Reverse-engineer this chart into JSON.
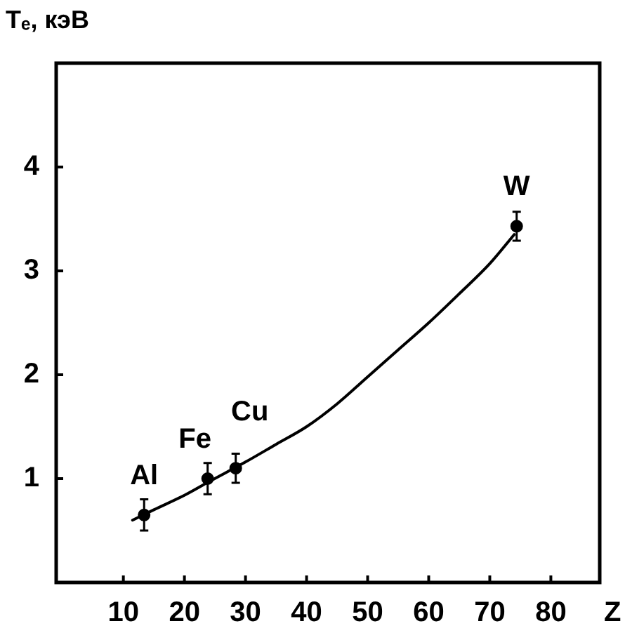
{
  "chart_data": {
    "type": "scatter",
    "xlabel": "Z",
    "ylabel": "Tₑ, кэВ",
    "xlim": [
      -1,
      88
    ],
    "xticks": [
      10,
      20,
      30,
      40,
      50,
      60,
      70,
      80
    ],
    "ylim": [
      0,
      5
    ],
    "yticks": [
      1,
      2,
      3,
      4
    ],
    "grid": false,
    "legend": false,
    "marker": "circle",
    "series": [
      {
        "color": "#000000",
        "x": [
          13.4,
          23.8,
          28.4,
          74.4
        ],
        "values": [
          0.65,
          1.0,
          1.1,
          3.43
        ],
        "errors": [
          0.15,
          0.15,
          0.14,
          0.14
        ]
      },
      {
        "type": "line",
        "color": "#000000",
        "marker": "none",
        "line_style": "solid",
        "x": [
          11.5,
          15,
          20,
          24,
          30,
          35,
          40,
          45,
          50,
          55,
          60,
          65,
          70,
          74
        ],
        "values": [
          0.6,
          0.7,
          0.84,
          0.97,
          1.16,
          1.33,
          1.5,
          1.72,
          1.98,
          2.24,
          2.5,
          2.78,
          3.07,
          3.35
        ]
      }
    ],
    "annotations": [
      {
        "text": "Al",
        "x": 13.4,
        "y": 0.65
      },
      {
        "text": "Fe",
        "x": 23.8,
        "y": 1.0
      },
      {
        "text": "Cu",
        "x": 28.4,
        "y": 1.1
      },
      {
        "text": "W",
        "x": 74.4,
        "y": 3.43
      }
    ]
  }
}
